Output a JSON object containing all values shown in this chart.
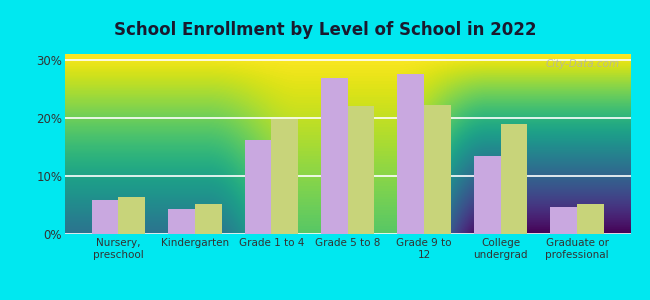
{
  "title": "School Enrollment by Level of School in 2022",
  "categories": [
    "Nursery,\npreschool",
    "Kindergarten",
    "Grade 1 to 4",
    "Grade 5 to 8",
    "Grade 9 to\n12",
    "College\nundergrad",
    "Graduate or\nprofessional"
  ],
  "zip_values": [
    5.8,
    4.3,
    16.2,
    26.8,
    27.5,
    13.5,
    4.7
  ],
  "mo_values": [
    6.3,
    5.2,
    19.8,
    22.0,
    22.2,
    19.0,
    5.1
  ],
  "zip_color": "#c9a8e0",
  "mo_color": "#c8d47a",
  "background_outer": "#00e8f0",
  "background_top": "#ffffff",
  "background_bottom": "#d4edba",
  "ylabel_ticks": [
    "0%",
    "10%",
    "20%",
    "30%"
  ],
  "yticks": [
    0,
    10,
    20,
    30
  ],
  "ylim": [
    0,
    31
  ],
  "bar_width": 0.35,
  "title_color": "#1a1a2e",
  "tick_color": "#333333"
}
